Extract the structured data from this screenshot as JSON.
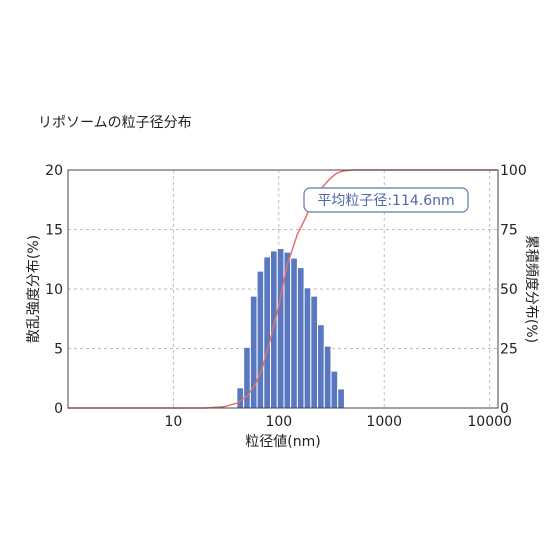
{
  "chart_data": {
    "type": "bar",
    "title": "リポソームの粒子径分布",
    "xlabel": "粒径値(nm)",
    "ylabel_left": "散乱強度分布(%)",
    "ylabel_right": "累積頻度分布(%)",
    "x_scale": "log",
    "xlim": [
      1,
      12000
    ],
    "x_ticks": [
      10,
      100,
      1000,
      10000
    ],
    "x_tick_labels": [
      "10",
      "100",
      "1000",
      "10000"
    ],
    "ylim_left": [
      0,
      20
    ],
    "y_left_ticks": [
      0,
      5,
      10,
      15,
      20
    ],
    "ylim_right": [
      0,
      100
    ],
    "y_right_ticks": [
      0,
      25,
      50,
      75,
      100
    ],
    "grid": true,
    "annotation": "平均粒子径:114.6nm",
    "bar_color": "#5a78c0",
    "curve_color": "#e07070",
    "series": [
      {
        "kind": "bar",
        "axis": "left",
        "bin_edges": [
          40.0,
          46.4,
          53.7,
          62.2,
          72.0,
          83.4,
          96.6,
          111.9,
          129.5,
          150.0,
          173.7,
          201.2,
          233.0,
          269.8,
          312.5,
          361.9,
          419.0,
          485.3,
          562.0
        ],
        "values": [
          1.7,
          5.1,
          9.4,
          11.5,
          12.7,
          13.2,
          13.4,
          13.1,
          12.6,
          11.8,
          10.1,
          9.4,
          7.0,
          5.2,
          3.1,
          1.6,
          0.0,
          0.0
        ]
      },
      {
        "kind": "line",
        "axis": "right",
        "x": [
          1,
          20,
          30,
          40,
          50,
          60,
          70,
          80,
          100,
          120,
          150,
          180,
          200,
          250,
          300,
          350,
          400,
          500,
          600,
          12000
        ],
        "y": [
          0,
          0,
          0.5,
          2,
          5,
          10,
          17,
          26,
          43,
          60,
          73,
          80,
          85,
          92,
          96,
          98.5,
          99.5,
          100,
          100,
          100
        ]
      }
    ]
  }
}
